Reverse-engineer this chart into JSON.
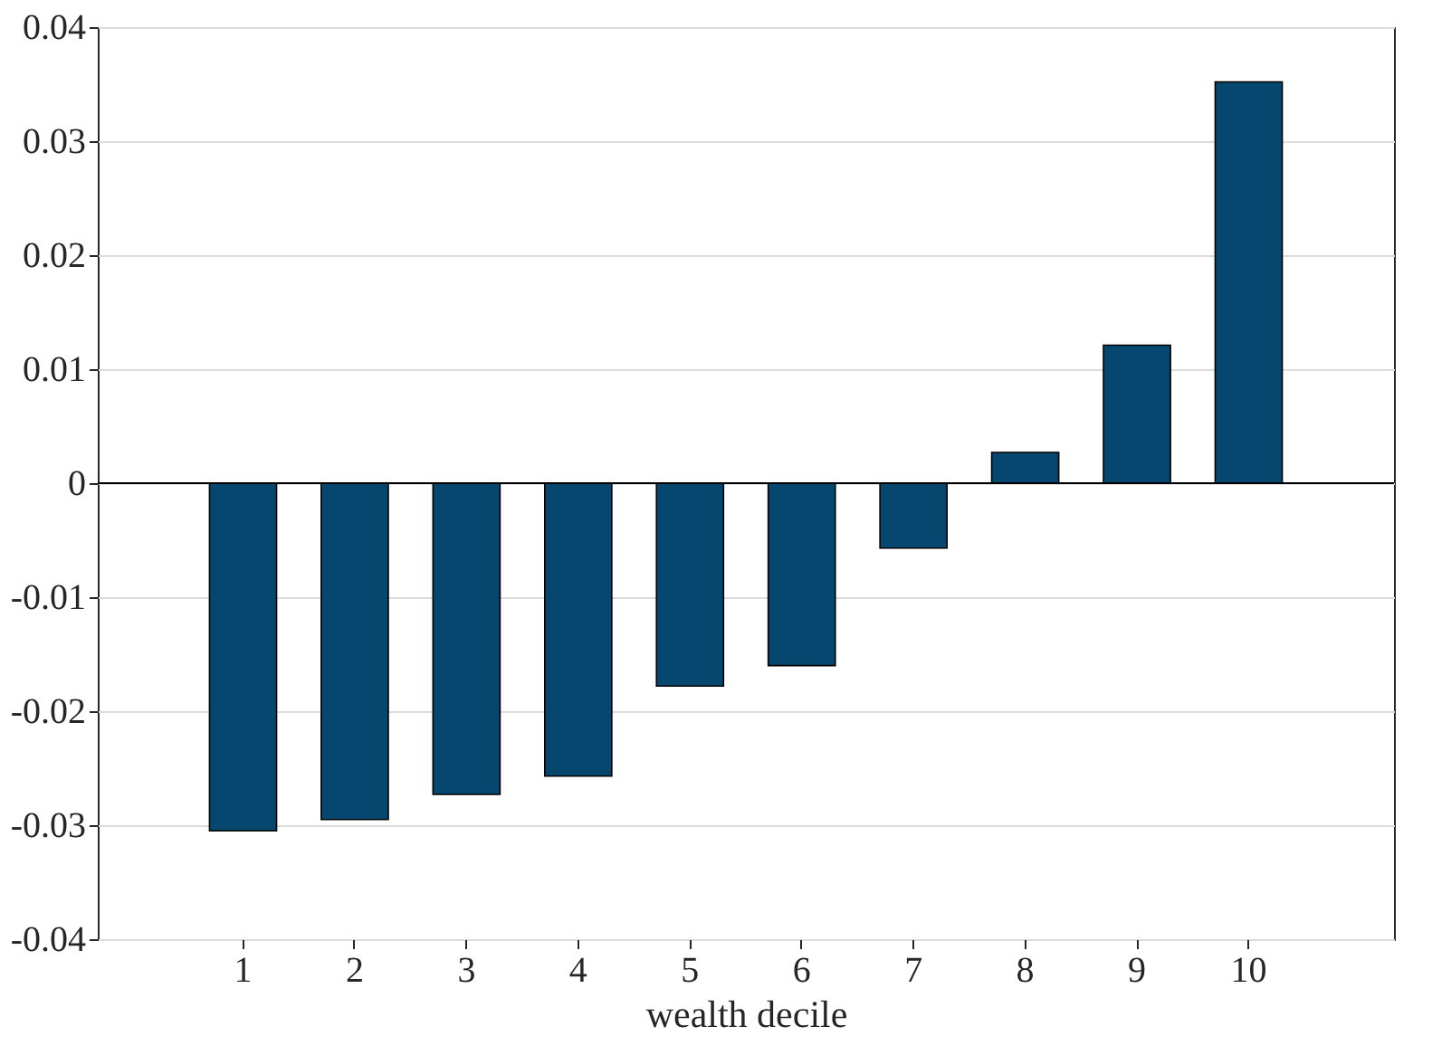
{
  "chart_data": {
    "type": "bar",
    "xlabel": "wealth decile",
    "categories": [
      "1",
      "2",
      "3",
      "4",
      "5",
      "6",
      "7",
      "8",
      "9",
      "10"
    ],
    "values": [
      -0.0305,
      -0.0295,
      -0.0273,
      -0.0257,
      -0.0178,
      -0.016,
      -0.0057,
      0.0027,
      0.0121,
      0.0352
    ],
    "color": "#06476f",
    "ylim": [
      -0.04,
      0.04
    ],
    "yticks": [
      -0.04,
      -0.03,
      -0.02,
      -0.01,
      0,
      0.01,
      0.02,
      0.03,
      0.04
    ],
    "grid": "y",
    "ref_lines": [
      {
        "axis": "y",
        "value": 0,
        "color": "#000000"
      }
    ]
  }
}
